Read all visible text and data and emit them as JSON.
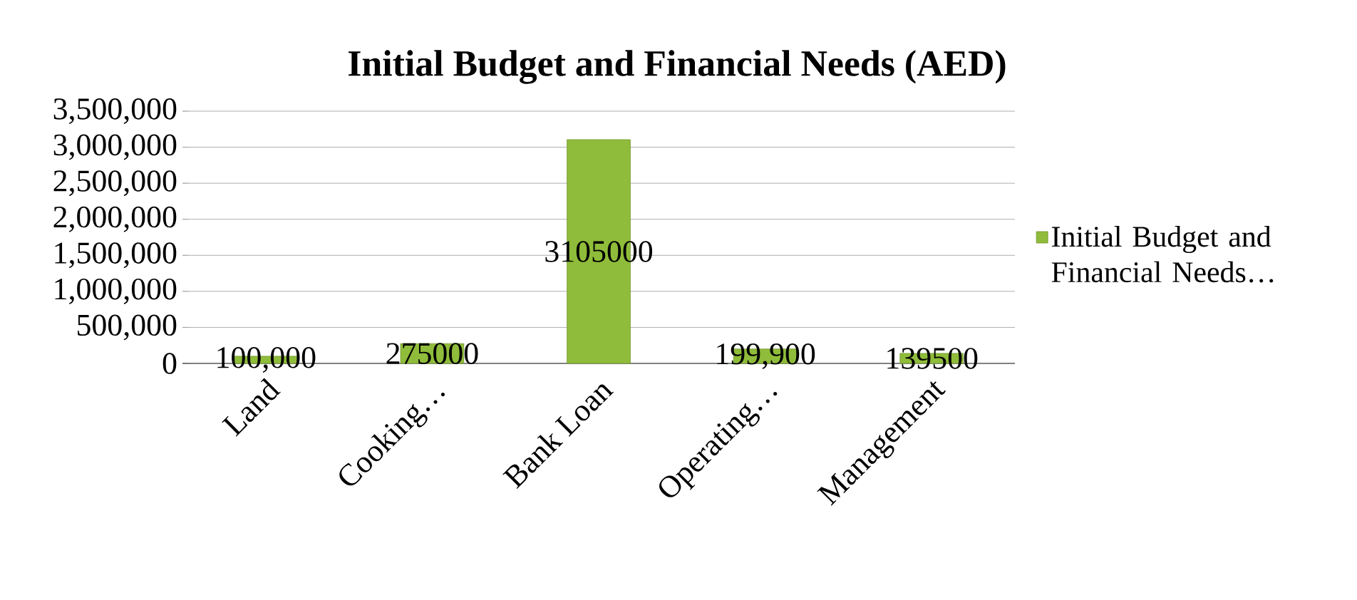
{
  "chart_data": {
    "type": "bar",
    "title": "Initial Budget and Financial Needs (AED)",
    "categories": [
      "Land",
      "Cooking…",
      "Bank Loan",
      "Operating…",
      "Management"
    ],
    "series": [
      {
        "name": "Initial Budget and Financial Needs…",
        "color": "#8fbc3a",
        "values": [
          100000,
          275000,
          3105000,
          199900,
          139500
        ],
        "value_labels": [
          "100,000",
          "275000",
          "3105000",
          "199,900",
          "139500"
        ]
      }
    ],
    "ylim": [
      0,
      3500000
    ],
    "yticks": [
      {
        "value": 0,
        "label": "0"
      },
      {
        "value": 500000,
        "label": "500,000"
      },
      {
        "value": 1000000,
        "label": "1,000,000"
      },
      {
        "value": 1500000,
        "label": "1,500,000"
      },
      {
        "value": 2000000,
        "label": "2,000,000"
      },
      {
        "value": 2500000,
        "label": "2,500,000"
      },
      {
        "value": 3000000,
        "label": "3,000,000"
      },
      {
        "value": 3500000,
        "label": "3,500,000"
      }
    ],
    "grid": "y",
    "legend": "right"
  }
}
